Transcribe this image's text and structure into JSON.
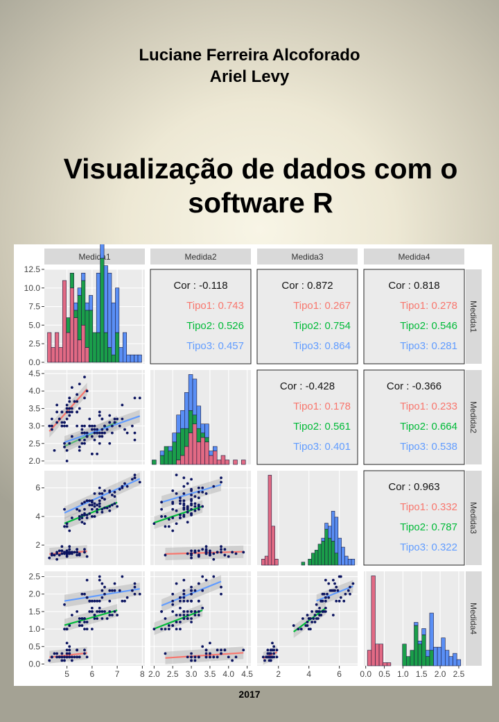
{
  "authors": [
    "Luciane Ferreira Alcoforado",
    "Ariel Levy"
  ],
  "title_lines": [
    "Visualização de dados com o",
    "software R"
  ],
  "year": "2017",
  "chart_data": {
    "type": "scatter-matrix",
    "variables": [
      "Medida1",
      "Medida2",
      "Medida3",
      "Medida4"
    ],
    "groups": [
      "Tipo1",
      "Tipo2",
      "Tipo3"
    ],
    "colors": {
      "Tipo1": "#F8766D",
      "Tipo2": "#00BA38",
      "Tipo3": "#619CFF",
      "hist_Tipo1": "#e26a84",
      "hist_Tipo2": "#1a9e4a",
      "hist_Tipo3": "#5a8ff5",
      "points": "#0b1460",
      "panel_bg": "#ebebeb",
      "strip_bg": "#d9d9d9"
    },
    "axis_ticks": {
      "Medida1": [
        "5",
        "6",
        "7",
        "8"
      ],
      "Medida2": [
        "2.0",
        "2.5",
        "3.0",
        "3.5",
        "4.0",
        "4.5"
      ],
      "Medida3": [
        "2",
        "4",
        "6"
      ],
      "Medida4": [
        "0.0",
        "0.5",
        "1.0",
        "1.5",
        "2.0",
        "2.5"
      ],
      "hist_count": [
        "0.0",
        "2.5",
        "5.0",
        "7.5",
        "10.0",
        "12.5"
      ]
    },
    "ranges": {
      "Medida1": [
        4.1,
        8.1
      ],
      "Medida2": [
        1.9,
        4.6
      ],
      "Medida3": [
        0.6,
        7.2
      ],
      "Medida4": [
        -0.05,
        2.65
      ],
      "hist_count": [
        -0.2,
        12.5
      ]
    },
    "correlations": [
      {
        "row": "Medida1",
        "col": "Medida2",
        "cor": "Cor : -0.118",
        "Tipo1": "Tipo1: 0.743",
        "Tipo2": "Tipo2: 0.526",
        "Tipo3": "Tipo3: 0.457"
      },
      {
        "row": "Medida1",
        "col": "Medida3",
        "cor": "Cor : 0.872",
        "Tipo1": "Tipo1: 0.267",
        "Tipo2": "Tipo2: 0.754",
        "Tipo3": "Tipo3: 0.864"
      },
      {
        "row": "Medida1",
        "col": "Medida4",
        "cor": "Cor : 0.818",
        "Tipo1": "Tipo1: 0.278",
        "Tipo2": "Tipo2: 0.546",
        "Tipo3": "Tipo3: 0.281"
      },
      {
        "row": "Medida2",
        "col": "Medida3",
        "cor": "Cor : -0.428",
        "Tipo1": "Tipo1: 0.178",
        "Tipo2": "Tipo2: 0.561",
        "Tipo3": "Tipo3: 0.401"
      },
      {
        "row": "Medida2",
        "col": "Medida4",
        "cor": "Cor : -0.366",
        "Tipo1": "Tipo1: 0.233",
        "Tipo2": "Tipo2: 0.664",
        "Tipo3": "Tipo3: 0.538"
      },
      {
        "row": "Medida3",
        "col": "Medida4",
        "cor": "Cor : 0.963",
        "Tipo1": "Tipo1: 0.332",
        "Tipo2": "Tipo2: 0.787",
        "Tipo3": "Tipo3: 0.322"
      }
    ],
    "histograms": {
      "Medida1": {
        "range": [
          4.3,
          7.9
        ],
        "bins": [
          [
            4,
            0,
            0
          ],
          [
            2,
            0,
            0
          ],
          [
            4,
            0,
            0
          ],
          [
            2,
            0,
            0
          ],
          [
            11,
            0,
            0
          ],
          [
            4,
            2,
            0
          ],
          [
            10,
            2,
            0
          ],
          [
            6,
            1,
            1
          ],
          [
            3,
            6,
            1
          ],
          [
            5,
            6,
            1
          ],
          [
            2,
            5,
            1
          ],
          [
            0,
            7,
            2
          ],
          [
            0,
            4,
            0
          ],
          [
            0,
            4,
            8
          ],
          [
            0,
            14,
            2
          ],
          [
            0,
            4,
            9
          ],
          [
            0,
            2,
            10
          ],
          [
            0,
            1,
            7
          ],
          [
            0,
            4,
            6
          ],
          [
            0,
            0,
            2
          ],
          [
            0,
            0,
            4
          ],
          [
            0,
            0,
            1
          ],
          [
            0,
            0,
            1
          ],
          [
            0,
            0,
            1
          ],
          [
            0,
            0,
            1
          ]
        ]
      },
      "Medida2": {
        "range": [
          2.0,
          4.4
        ],
        "bins": [
          [
            0,
            1,
            0
          ],
          [
            0,
            0,
            0
          ],
          [
            0,
            2,
            1
          ],
          [
            0,
            4,
            0
          ],
          [
            0,
            3,
            1
          ],
          [
            0,
            5,
            2
          ],
          [
            1,
            6,
            4
          ],
          [
            2,
            6,
            4
          ],
          [
            4,
            4,
            8
          ],
          [
            7,
            5,
            8
          ],
          [
            9,
            2,
            8
          ],
          [
            5,
            3,
            5
          ],
          [
            6,
            1,
            2
          ],
          [
            5,
            1,
            3
          ],
          [
            2,
            0,
            1
          ],
          [
            3,
            0,
            1
          ],
          [
            1,
            0,
            0
          ],
          [
            2,
            0,
            0
          ],
          [
            1,
            0,
            0
          ],
          [
            0,
            0,
            0
          ],
          [
            1,
            0,
            0
          ],
          [
            0,
            0,
            0
          ],
          [
            1,
            0,
            0
          ]
        ]
      },
      "Medida3": {
        "range": [
          1.0,
          6.9
        ],
        "bins": [
          [
            2,
            0,
            0
          ],
          [
            3,
            0,
            0
          ],
          [
            30,
            0,
            0
          ],
          [
            13,
            0,
            0
          ],
          [
            2,
            0,
            0
          ],
          [
            0,
            0,
            0
          ],
          [
            0,
            0,
            0
          ],
          [
            0,
            0,
            0
          ],
          [
            0,
            0,
            0
          ],
          [
            0,
            0,
            0
          ],
          [
            0,
            0,
            0
          ],
          [
            0,
            0,
            0
          ],
          [
            0,
            1,
            0
          ],
          [
            0,
            0,
            0
          ],
          [
            0,
            2,
            0
          ],
          [
            0,
            4,
            0
          ],
          [
            0,
            5,
            0
          ],
          [
            0,
            7,
            0
          ],
          [
            0,
            8,
            1
          ],
          [
            0,
            12,
            2
          ],
          [
            0,
            9,
            4
          ],
          [
            0,
            8,
            10
          ],
          [
            0,
            4,
            12
          ],
          [
            0,
            0,
            9
          ],
          [
            0,
            0,
            6
          ],
          [
            0,
            0,
            3
          ],
          [
            0,
            0,
            2
          ],
          [
            0,
            0,
            2
          ]
        ]
      },
      "Medida4": {
        "range": [
          0.1,
          2.5
        ],
        "bins": [
          [
            5,
            0,
            0
          ],
          [
            29,
            0,
            0
          ],
          [
            7,
            0,
            0
          ],
          [
            7,
            0,
            0
          ],
          [
            1,
            0,
            0
          ],
          [
            1,
            0,
            0
          ],
          [
            0,
            0,
            0
          ],
          [
            0,
            0,
            0
          ],
          [
            0,
            0,
            0
          ],
          [
            0,
            7,
            0
          ],
          [
            0,
            3,
            0
          ],
          [
            0,
            5,
            0
          ],
          [
            0,
            13,
            1
          ],
          [
            0,
            7,
            1
          ],
          [
            0,
            10,
            2
          ],
          [
            0,
            3,
            2
          ],
          [
            0,
            5,
            12
          ],
          [
            0,
            0,
            6
          ],
          [
            0,
            0,
            6
          ],
          [
            0,
            0,
            9
          ],
          [
            0,
            0,
            5
          ],
          [
            0,
            0,
            3
          ],
          [
            0,
            0,
            4
          ],
          [
            0,
            0,
            2
          ]
        ]
      }
    },
    "points": {
      "Tipo1": [
        [
          5.1,
          3.5,
          1.4,
          0.2
        ],
        [
          4.9,
          3.0,
          1.4,
          0.2
        ],
        [
          4.7,
          3.2,
          1.3,
          0.2
        ],
        [
          4.6,
          3.1,
          1.5,
          0.2
        ],
        [
          5.0,
          3.6,
          1.4,
          0.2
        ],
        [
          5.4,
          3.9,
          1.7,
          0.4
        ],
        [
          4.6,
          3.4,
          1.4,
          0.3
        ],
        [
          5.0,
          3.4,
          1.5,
          0.2
        ],
        [
          4.4,
          2.9,
          1.4,
          0.2
        ],
        [
          4.9,
          3.1,
          1.5,
          0.1
        ],
        [
          5.4,
          3.7,
          1.5,
          0.2
        ],
        [
          4.8,
          3.4,
          1.6,
          0.2
        ],
        [
          4.8,
          3.0,
          1.4,
          0.1
        ],
        [
          4.3,
          3.0,
          1.1,
          0.1
        ],
        [
          5.8,
          4.0,
          1.2,
          0.2
        ],
        [
          5.7,
          4.4,
          1.5,
          0.4
        ],
        [
          5.4,
          3.9,
          1.3,
          0.4
        ],
        [
          5.1,
          3.5,
          1.4,
          0.3
        ],
        [
          5.7,
          3.8,
          1.7,
          0.3
        ],
        [
          5.1,
          3.8,
          1.5,
          0.3
        ],
        [
          5.4,
          3.4,
          1.7,
          0.2
        ],
        [
          5.1,
          3.7,
          1.5,
          0.4
        ],
        [
          4.6,
          3.6,
          1.0,
          0.2
        ],
        [
          5.1,
          3.3,
          1.7,
          0.5
        ],
        [
          4.8,
          3.4,
          1.9,
          0.2
        ],
        [
          5.0,
          3.0,
          1.6,
          0.2
        ],
        [
          5.0,
          3.4,
          1.6,
          0.4
        ],
        [
          5.2,
          3.5,
          1.5,
          0.2
        ],
        [
          5.2,
          3.4,
          1.4,
          0.2
        ],
        [
          4.7,
          3.2,
          1.6,
          0.2
        ],
        [
          4.8,
          3.1,
          1.6,
          0.2
        ],
        [
          5.4,
          3.4,
          1.5,
          0.4
        ],
        [
          5.2,
          4.1,
          1.5,
          0.1
        ],
        [
          5.5,
          4.2,
          1.4,
          0.2
        ],
        [
          4.9,
          3.1,
          1.5,
          0.2
        ],
        [
          5.0,
          3.2,
          1.2,
          0.2
        ],
        [
          5.5,
          3.5,
          1.3,
          0.2
        ],
        [
          4.4,
          3.0,
          1.3,
          0.2
        ],
        [
          5.1,
          3.4,
          1.5,
          0.2
        ],
        [
          5.0,
          3.5,
          1.3,
          0.3
        ],
        [
          4.5,
          2.3,
          1.3,
          0.3
        ],
        [
          4.4,
          3.2,
          1.3,
          0.2
        ],
        [
          5.0,
          3.5,
          1.6,
          0.6
        ],
        [
          5.1,
          3.8,
          1.9,
          0.4
        ],
        [
          4.8,
          3.0,
          1.4,
          0.3
        ],
        [
          5.3,
          3.7,
          1.5,
          0.2
        ]
      ],
      "Tipo2": [
        [
          7.0,
          3.2,
          4.7,
          1.4
        ],
        [
          6.4,
          3.2,
          4.5,
          1.5
        ],
        [
          6.9,
          3.1,
          4.9,
          1.5
        ],
        [
          5.5,
          2.3,
          4.0,
          1.3
        ],
        [
          6.5,
          2.8,
          4.6,
          1.5
        ],
        [
          5.7,
          2.8,
          4.5,
          1.3
        ],
        [
          6.3,
          3.3,
          4.7,
          1.6
        ],
        [
          4.9,
          2.4,
          3.3,
          1.0
        ],
        [
          6.6,
          2.9,
          4.6,
          1.3
        ],
        [
          5.2,
          2.7,
          3.9,
          1.4
        ],
        [
          5.0,
          2.0,
          3.5,
          1.0
        ],
        [
          5.9,
          3.0,
          4.2,
          1.5
        ],
        [
          6.0,
          2.2,
          4.0,
          1.0
        ],
        [
          6.1,
          2.9,
          4.7,
          1.4
        ],
        [
          5.6,
          2.9,
          3.6,
          1.3
        ],
        [
          6.7,
          3.1,
          4.4,
          1.4
        ],
        [
          5.8,
          2.7,
          4.1,
          1.0
        ],
        [
          6.2,
          2.2,
          4.5,
          1.5
        ],
        [
          5.6,
          2.5,
          3.9,
          1.1
        ],
        [
          5.9,
          3.2,
          4.8,
          1.8
        ],
        [
          6.1,
          2.8,
          4.0,
          1.3
        ],
        [
          6.3,
          2.5,
          4.9,
          1.5
        ],
        [
          6.4,
          2.9,
          4.3,
          1.3
        ],
        [
          6.8,
          2.8,
          4.8,
          1.4
        ],
        [
          6.0,
          2.9,
          4.5,
          1.5
        ],
        [
          5.7,
          2.6,
          3.5,
          1.0
        ],
        [
          5.5,
          2.4,
          3.8,
          1.1
        ],
        [
          5.8,
          2.7,
          3.9,
          1.2
        ],
        [
          6.0,
          2.7,
          5.1,
          1.6
        ],
        [
          5.4,
          3.0,
          4.5,
          1.5
        ],
        [
          6.7,
          3.1,
          4.7,
          1.5
        ],
        [
          5.6,
          3.0,
          4.1,
          1.3
        ],
        [
          5.5,
          2.6,
          4.4,
          1.2
        ],
        [
          5.0,
          2.3,
          3.3,
          1.0
        ],
        [
          5.7,
          3.0,
          4.2,
          1.2
        ],
        [
          6.2,
          2.9,
          4.3,
          1.3
        ],
        [
          5.1,
          2.5,
          3.0,
          1.1
        ],
        [
          5.7,
          2.8,
          4.1,
          1.3
        ]
      ],
      "Tipo3": [
        [
          6.3,
          3.3,
          6.0,
          2.5
        ],
        [
          5.8,
          2.7,
          5.1,
          1.9
        ],
        [
          7.1,
          3.0,
          5.9,
          2.1
        ],
        [
          6.5,
          3.0,
          5.8,
          2.2
        ],
        [
          7.6,
          3.0,
          6.6,
          2.1
        ],
        [
          4.9,
          2.5,
          4.5,
          1.7
        ],
        [
          7.3,
          2.9,
          6.3,
          1.8
        ],
        [
          6.7,
          2.5,
          5.8,
          1.8
        ],
        [
          7.2,
          3.6,
          6.1,
          2.5
        ],
        [
          6.4,
          2.7,
          5.3,
          1.9
        ],
        [
          6.8,
          3.0,
          5.5,
          2.1
        ],
        [
          5.7,
          2.5,
          5.0,
          2.0
        ],
        [
          5.8,
          2.8,
          5.1,
          2.4
        ],
        [
          6.4,
          3.2,
          5.3,
          2.3
        ],
        [
          7.7,
          3.8,
          6.7,
          2.2
        ],
        [
          7.7,
          2.6,
          6.9,
          2.3
        ],
        [
          6.0,
          2.2,
          5.0,
          1.5
        ],
        [
          6.9,
          3.2,
          5.7,
          2.3
        ],
        [
          5.6,
          2.8,
          4.9,
          2.0
        ],
        [
          7.7,
          2.8,
          6.7,
          2.0
        ],
        [
          6.3,
          2.7,
          4.9,
          1.8
        ],
        [
          6.7,
          3.3,
          5.7,
          2.1
        ],
        [
          7.2,
          3.2,
          6.0,
          1.8
        ],
        [
          6.2,
          2.8,
          4.8,
          1.8
        ],
        [
          6.1,
          3.0,
          4.9,
          1.8
        ],
        [
          6.4,
          2.8,
          5.6,
          2.1
        ],
        [
          7.4,
          2.8,
          6.1,
          1.9
        ],
        [
          7.9,
          3.8,
          6.4,
          2.0
        ],
        [
          6.3,
          2.8,
          5.1,
          1.5
        ],
        [
          6.1,
          2.6,
          5.6,
          1.4
        ],
        [
          6.3,
          3.4,
          5.6,
          2.4
        ],
        [
          6.0,
          3.0,
          4.8,
          1.8
        ],
        [
          6.9,
          3.1,
          5.4,
          2.1
        ],
        [
          5.8,
          2.7,
          5.1,
          1.9
        ],
        [
          6.5,
          3.0,
          5.2,
          2.0
        ],
        [
          5.9,
          3.0,
          5.1,
          1.8
        ]
      ]
    }
  }
}
